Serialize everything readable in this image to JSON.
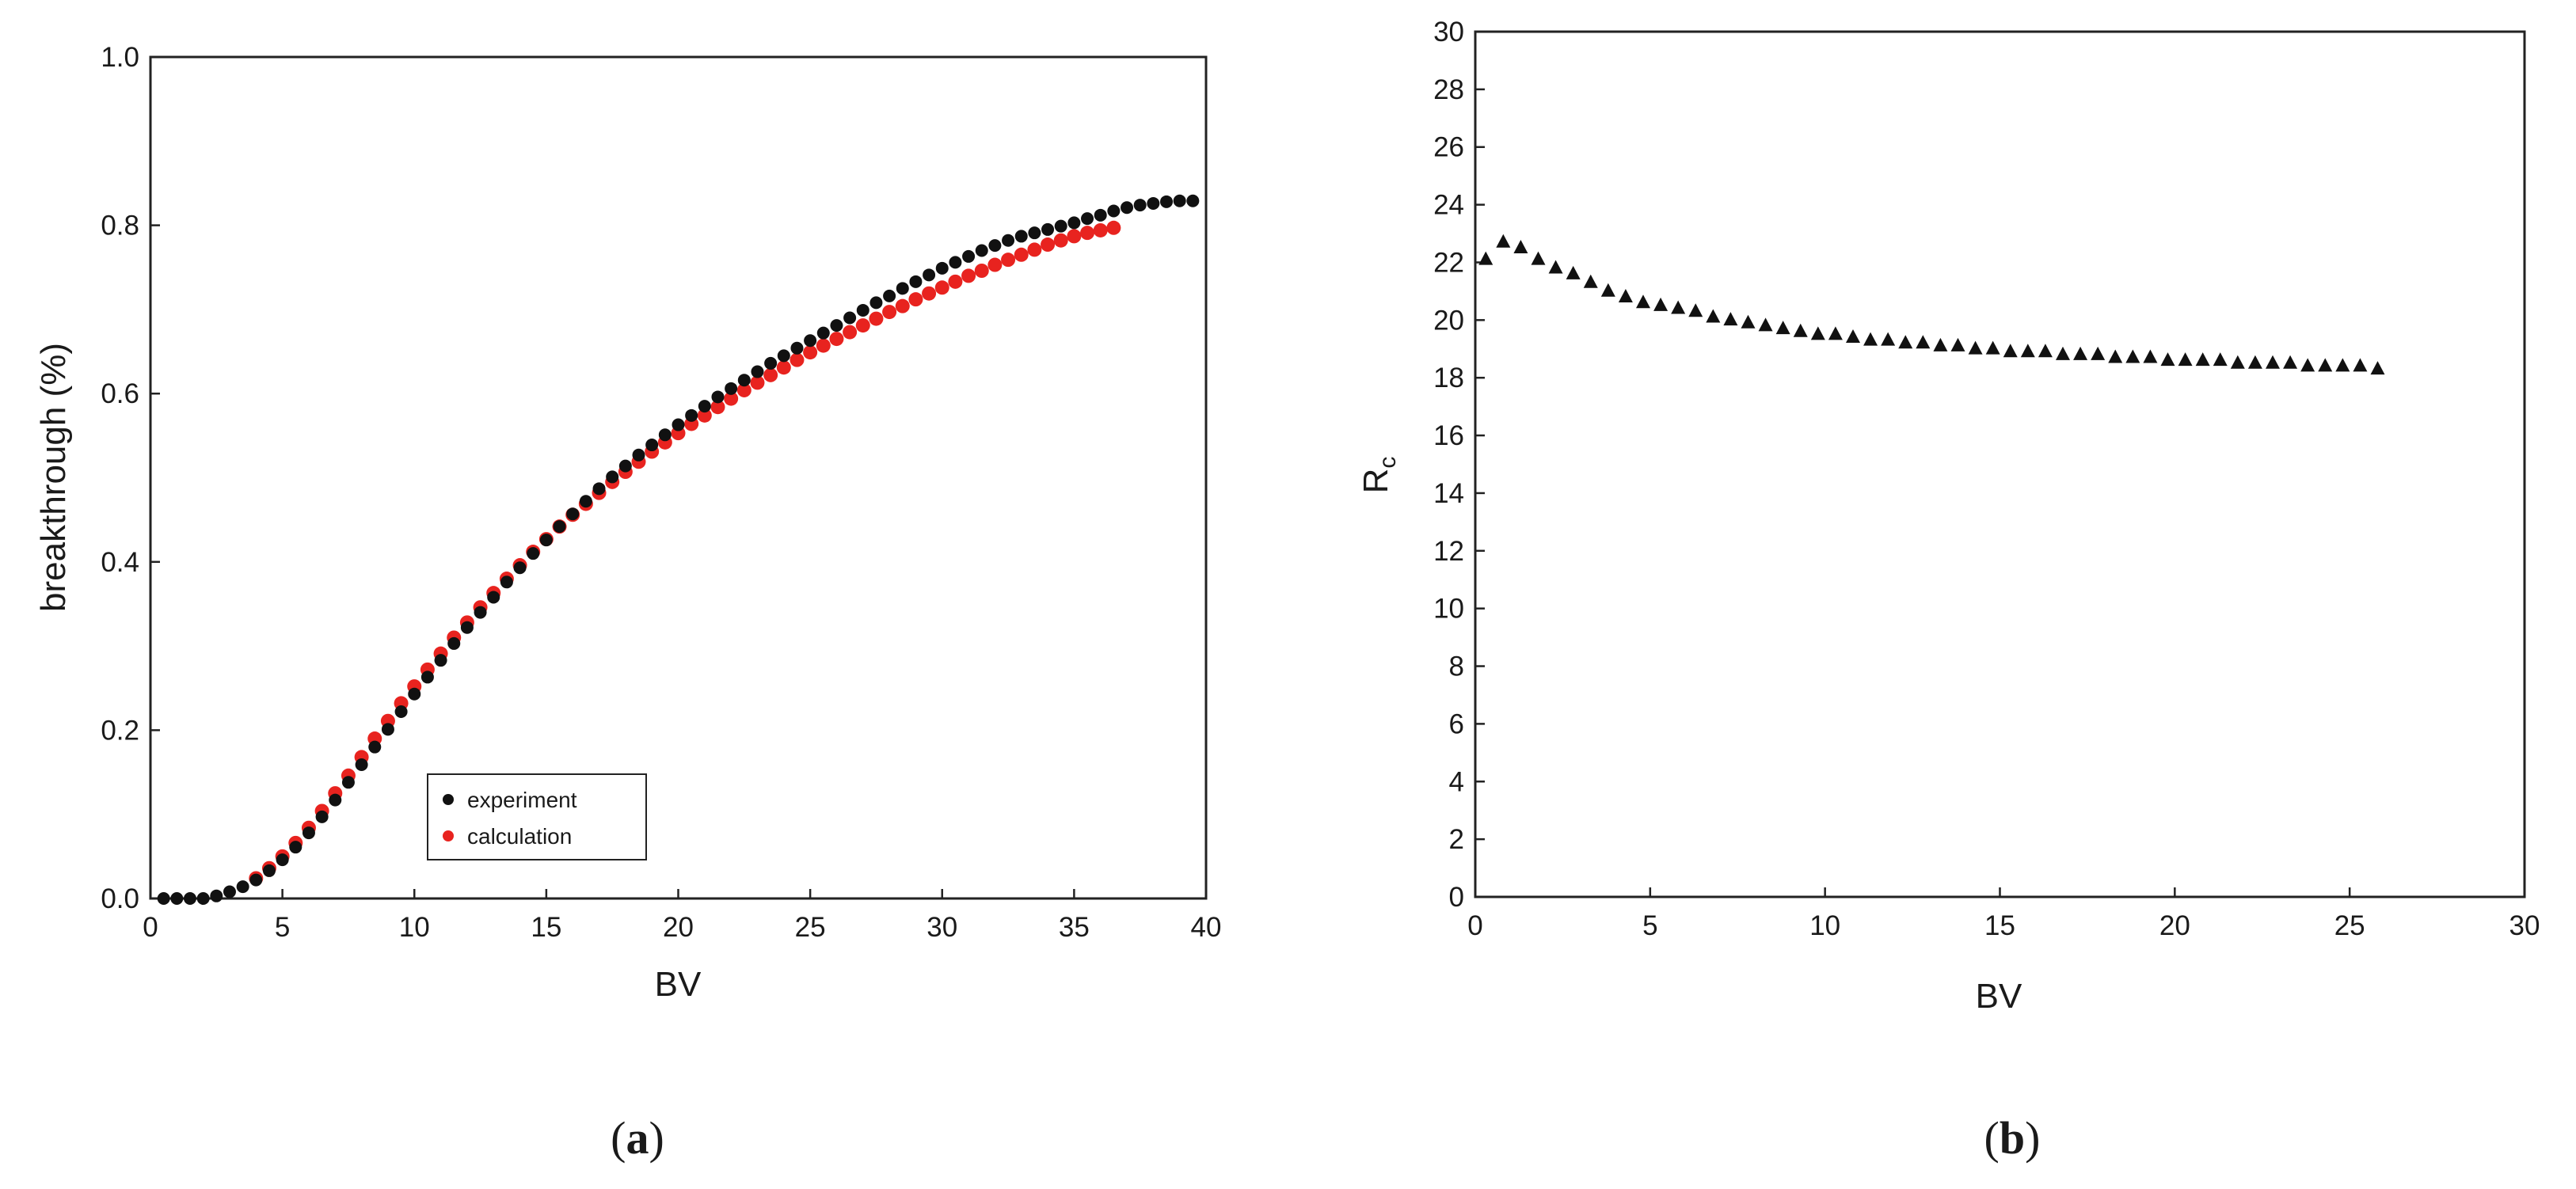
{
  "chart_data": [
    {
      "type": "scatter",
      "panel_label": {
        "open": "(",
        "letter": "a",
        "close": ")"
      },
      "xlabel": "BV",
      "ylabel": "breakthrough (%)",
      "xlim": [
        0,
        40
      ],
      "ylim": [
        0,
        1.0
      ],
      "xticks": [
        "0",
        "5",
        "10",
        "15",
        "20",
        "25",
        "30",
        "35",
        "40"
      ],
      "yticks": [
        "0.0",
        "0.2",
        "0.4",
        "0.6",
        "0.8",
        "1.0"
      ],
      "legend_position": "lower-center",
      "colors": {
        "experiment": "#111111",
        "calculation": "#e8231f"
      },
      "series": [
        {
          "name": "experiment",
          "x": [
            0.5,
            1,
            1.5,
            2,
            2.5,
            3,
            3.5,
            4,
            4.5,
            5,
            5.5,
            6,
            6.5,
            7,
            7.5,
            8,
            8.5,
            9,
            9.5,
            10,
            10.5,
            11,
            11.5,
            12,
            12.5,
            13,
            13.5,
            14,
            14.5,
            15,
            15.5,
            16,
            16.5,
            17,
            17.5,
            18,
            18.5,
            19,
            19.5,
            20,
            20.5,
            21,
            21.5,
            22,
            22.5,
            23,
            23.5,
            24,
            24.5,
            25,
            25.5,
            26,
            26.5,
            27,
            27.5,
            28,
            28.5,
            29,
            29.5,
            30,
            30.5,
            31,
            31.5,
            32,
            32.5,
            33,
            33.5,
            34,
            34.5,
            35,
            35.5,
            36,
            36.5,
            37,
            37.5,
            38,
            38.5,
            39,
            39.5
          ],
          "y": [
            0.0,
            0.0,
            0.0,
            0.0,
            0.003,
            0.008,
            0.014,
            0.022,
            0.033,
            0.046,
            0.061,
            0.078,
            0.097,
            0.117,
            0.138,
            0.159,
            0.18,
            0.201,
            0.222,
            0.243,
            0.263,
            0.283,
            0.303,
            0.322,
            0.34,
            0.358,
            0.376,
            0.393,
            0.41,
            0.426,
            0.442,
            0.457,
            0.472,
            0.487,
            0.501,
            0.514,
            0.527,
            0.539,
            0.551,
            0.563,
            0.574,
            0.585,
            0.596,
            0.606,
            0.616,
            0.626,
            0.636,
            0.645,
            0.654,
            0.663,
            0.672,
            0.681,
            0.69,
            0.699,
            0.708,
            0.716,
            0.725,
            0.733,
            0.741,
            0.749,
            0.756,
            0.763,
            0.77,
            0.776,
            0.782,
            0.787,
            0.791,
            0.795,
            0.799,
            0.803,
            0.808,
            0.812,
            0.817,
            0.821,
            0.824,
            0.826,
            0.828,
            0.829,
            0.829
          ]
        },
        {
          "name": "calculation",
          "x": [
            4,
            4.5,
            5,
            5.5,
            6,
            6.5,
            7,
            7.5,
            8,
            8.5,
            9,
            9.5,
            10,
            10.5,
            11,
            11.5,
            12,
            12.5,
            13,
            13.5,
            14,
            14.5,
            15,
            15.5,
            16,
            16.5,
            17,
            17.5,
            18,
            18.5,
            19,
            19.5,
            20,
            20.5,
            21,
            21.5,
            22,
            22.5,
            23,
            23.5,
            24,
            24.5,
            25,
            25.5,
            26,
            26.5,
            27,
            27.5,
            28,
            28.5,
            29,
            29.5,
            30,
            30.5,
            31,
            31.5,
            32,
            32.5,
            33,
            33.5,
            34,
            34.5,
            35,
            35.5,
            36,
            36.5
          ],
          "y": [
            0.024,
            0.036,
            0.05,
            0.066,
            0.084,
            0.104,
            0.125,
            0.146,
            0.168,
            0.19,
            0.211,
            0.232,
            0.252,
            0.272,
            0.291,
            0.31,
            0.328,
            0.346,
            0.363,
            0.38,
            0.396,
            0.412,
            0.427,
            0.442,
            0.456,
            0.469,
            0.482,
            0.495,
            0.507,
            0.519,
            0.531,
            0.542,
            0.553,
            0.564,
            0.574,
            0.584,
            0.594,
            0.604,
            0.613,
            0.622,
            0.631,
            0.64,
            0.649,
            0.657,
            0.665,
            0.673,
            0.681,
            0.689,
            0.697,
            0.704,
            0.712,
            0.719,
            0.726,
            0.733,
            0.74,
            0.746,
            0.753,
            0.759,
            0.765,
            0.771,
            0.777,
            0.782,
            0.787,
            0.791,
            0.794,
            0.797
          ]
        }
      ]
    },
    {
      "type": "scatter",
      "panel_label": {
        "open": "(",
        "letter": "b",
        "close": ")"
      },
      "xlabel": "BV",
      "ylabel_main": "R",
      "ylabel_sub": "c",
      "xlim": [
        0,
        30
      ],
      "ylim": [
        0,
        30
      ],
      "xticks": [
        "0",
        "5",
        "10",
        "15",
        "20",
        "25",
        "30"
      ],
      "yticks": [
        "0",
        "2",
        "4",
        "6",
        "8",
        "10",
        "12",
        "14",
        "16",
        "18",
        "20",
        "22",
        "24",
        "26",
        "28",
        "30"
      ],
      "marker": "triangle",
      "colors": {
        "points": "#111111"
      },
      "series": [
        {
          "x": [
            0.3,
            0.8,
            1.3,
            1.8,
            2.3,
            2.8,
            3.3,
            3.8,
            4.3,
            4.8,
            5.3,
            5.8,
            6.3,
            6.8,
            7.3,
            7.8,
            8.3,
            8.8,
            9.3,
            9.8,
            10.3,
            10.8,
            11.3,
            11.8,
            12.3,
            12.8,
            13.3,
            13.8,
            14.3,
            14.8,
            15.3,
            15.8,
            16.3,
            16.8,
            17.3,
            17.8,
            18.3,
            18.8,
            19.3,
            19.8,
            20.3,
            20.8,
            21.3,
            21.8,
            22.3,
            22.8,
            23.3,
            23.8,
            24.3,
            24.8,
            25.3,
            25.8
          ],
          "y": [
            22.1,
            22.7,
            22.5,
            22.1,
            21.8,
            21.6,
            21.3,
            21.0,
            20.8,
            20.6,
            20.5,
            20.4,
            20.3,
            20.1,
            20.0,
            19.9,
            19.8,
            19.7,
            19.6,
            19.5,
            19.5,
            19.4,
            19.3,
            19.3,
            19.2,
            19.2,
            19.1,
            19.1,
            19.0,
            19.0,
            18.9,
            18.9,
            18.9,
            18.8,
            18.8,
            18.8,
            18.7,
            18.7,
            18.7,
            18.6,
            18.6,
            18.6,
            18.6,
            18.5,
            18.5,
            18.5,
            18.5,
            18.4,
            18.4,
            18.4,
            18.4,
            18.3
          ]
        }
      ]
    }
  ]
}
